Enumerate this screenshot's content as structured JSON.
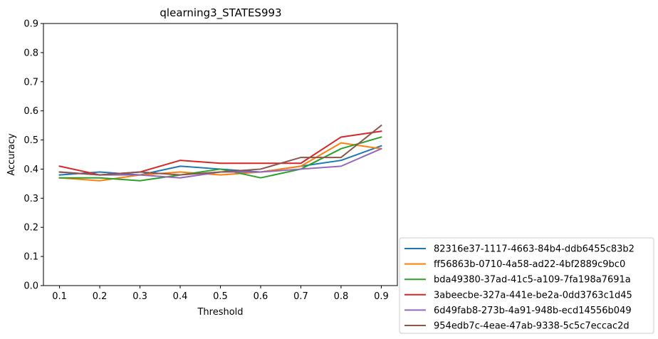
{
  "chart_data": {
    "type": "line",
    "title": "qlearning3_STATES993",
    "xlabel": "Threshold",
    "ylabel": "Accuracy",
    "x": [
      0.1,
      0.2,
      0.3,
      0.4,
      0.5,
      0.6,
      0.7,
      0.8,
      0.9
    ],
    "x_tick_labels": [
      "0.1",
      "0.2",
      "0.3",
      "0.4",
      "0.5",
      "0.6",
      "0.7",
      "0.8",
      "0.9"
    ],
    "xlim": [
      0.06,
      0.94
    ],
    "ylim": [
      0.0,
      0.9
    ],
    "y_ticks": [
      0.0,
      0.1,
      0.2,
      0.3,
      0.4,
      0.5,
      0.6,
      0.7,
      0.8,
      0.9
    ],
    "y_tick_labels": [
      "0.0",
      "0.1",
      "0.2",
      "0.3",
      "0.4",
      "0.5",
      "0.6",
      "0.7",
      "0.8",
      "0.9"
    ],
    "grid": false,
    "legend_position": "outside-bottom-right",
    "series": [
      {
        "name": "82316e37-1117-4663-84b4-ddb6455c83b2",
        "color": "#1f77b4",
        "values": [
          0.38,
          0.39,
          0.38,
          0.41,
          0.4,
          0.39,
          0.41,
          0.43,
          0.48
        ]
      },
      {
        "name": "ff56863b-0710-4a58-ad22-4bf2889c9bc0",
        "color": "#ff7f0e",
        "values": [
          0.37,
          0.36,
          0.38,
          0.39,
          0.38,
          0.39,
          0.41,
          0.49,
          0.47
        ]
      },
      {
        "name": "bda49380-37ad-41c5-a109-7fa198a7691a",
        "color": "#2ca02c",
        "values": [
          0.37,
          0.37,
          0.36,
          0.38,
          0.4,
          0.37,
          0.4,
          0.47,
          0.51
        ]
      },
      {
        "name": "3abeecbe-327a-441e-be2a-0dd3763c1d45",
        "color": "#d62728",
        "values": [
          0.41,
          0.38,
          0.39,
          0.43,
          0.42,
          0.42,
          0.42,
          0.51,
          0.53
        ]
      },
      {
        "name": "6d49fab8-273b-4a91-948b-ecd14556b049",
        "color": "#9467bd",
        "values": [
          0.39,
          0.38,
          0.38,
          0.37,
          0.39,
          0.39,
          0.4,
          0.41,
          0.47
        ]
      },
      {
        "name": "954edb7c-4eae-47ab-9338-5c5c7eccac2d",
        "color": "#8c564b",
        "values": [
          0.39,
          0.38,
          0.39,
          0.38,
          0.39,
          0.4,
          0.44,
          0.44,
          0.55
        ]
      }
    ]
  }
}
